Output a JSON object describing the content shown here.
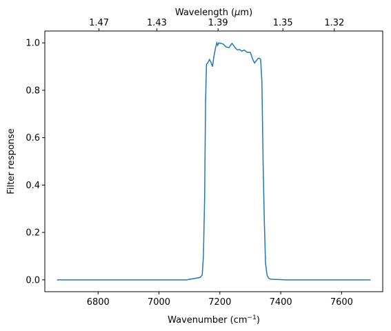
{
  "chart_data": {
    "type": "line",
    "xlabel": "Wavenumber (cm",
    "xlabel_sup": "−1",
    "xlabel_suffix": ")",
    "ylabel": "Filter response",
    "top_xlabel": "Wavelength (",
    "top_xlabel_mu": "μ",
    "top_xlabel_suffix": "m)",
    "xlim": [
      6625,
      7735
    ],
    "ylim": [
      -0.05,
      1.05
    ],
    "xticks": [
      6800,
      7000,
      7200,
      7400,
      7600
    ],
    "xtick_labels": [
      "6800",
      "7000",
      "7200",
      "7400",
      "7600"
    ],
    "yticks": [
      0.0,
      0.2,
      0.4,
      0.6,
      0.8,
      1.0
    ],
    "ytick_labels": [
      "0.0",
      "0.2",
      "0.4",
      "0.6",
      "0.8",
      "1.0"
    ],
    "top_ticks_wavenumber": [
      6803,
      6993,
      7194,
      7407,
      7576
    ],
    "top_tick_labels": [
      "1.47",
      "1.43",
      "1.39",
      "1.35",
      "1.32"
    ],
    "color": "#1f77b4",
    "grid": false,
    "legend": "none",
    "series": [
      {
        "x": [
          6665,
          7000,
          7090,
          7135,
          7142,
          7146,
          7150,
          7153,
          7156,
          7160,
          7166,
          7170,
          7176,
          7180,
          7186,
          7190,
          7193,
          7196,
          7200,
          7205,
          7212,
          7220,
          7230,
          7240,
          7250,
          7258,
          7265,
          7272,
          7280,
          7290,
          7300,
          7308,
          7314,
          7320,
          7326,
          7330,
          7334,
          7338,
          7342,
          7346,
          7350,
          7355,
          7360,
          7366,
          7373,
          7380,
          7420,
          7500,
          7600,
          7695
        ],
        "y": [
          0.0,
          0.0,
          0.0,
          0.01,
          0.02,
          0.1,
          0.35,
          0.75,
          0.91,
          0.915,
          0.93,
          0.92,
          0.9,
          0.94,
          0.98,
          1.0,
          0.99,
          1.0,
          0.998,
          0.998,
          0.994,
          0.983,
          0.98,
          0.998,
          0.98,
          0.97,
          0.972,
          0.965,
          0.97,
          0.96,
          0.96,
          0.93,
          0.915,
          0.925,
          0.935,
          0.935,
          0.93,
          0.84,
          0.5,
          0.25,
          0.07,
          0.02,
          0.007,
          0.003,
          0.002,
          0.002,
          0.0,
          0.0,
          0.0,
          0.0
        ]
      }
    ]
  }
}
